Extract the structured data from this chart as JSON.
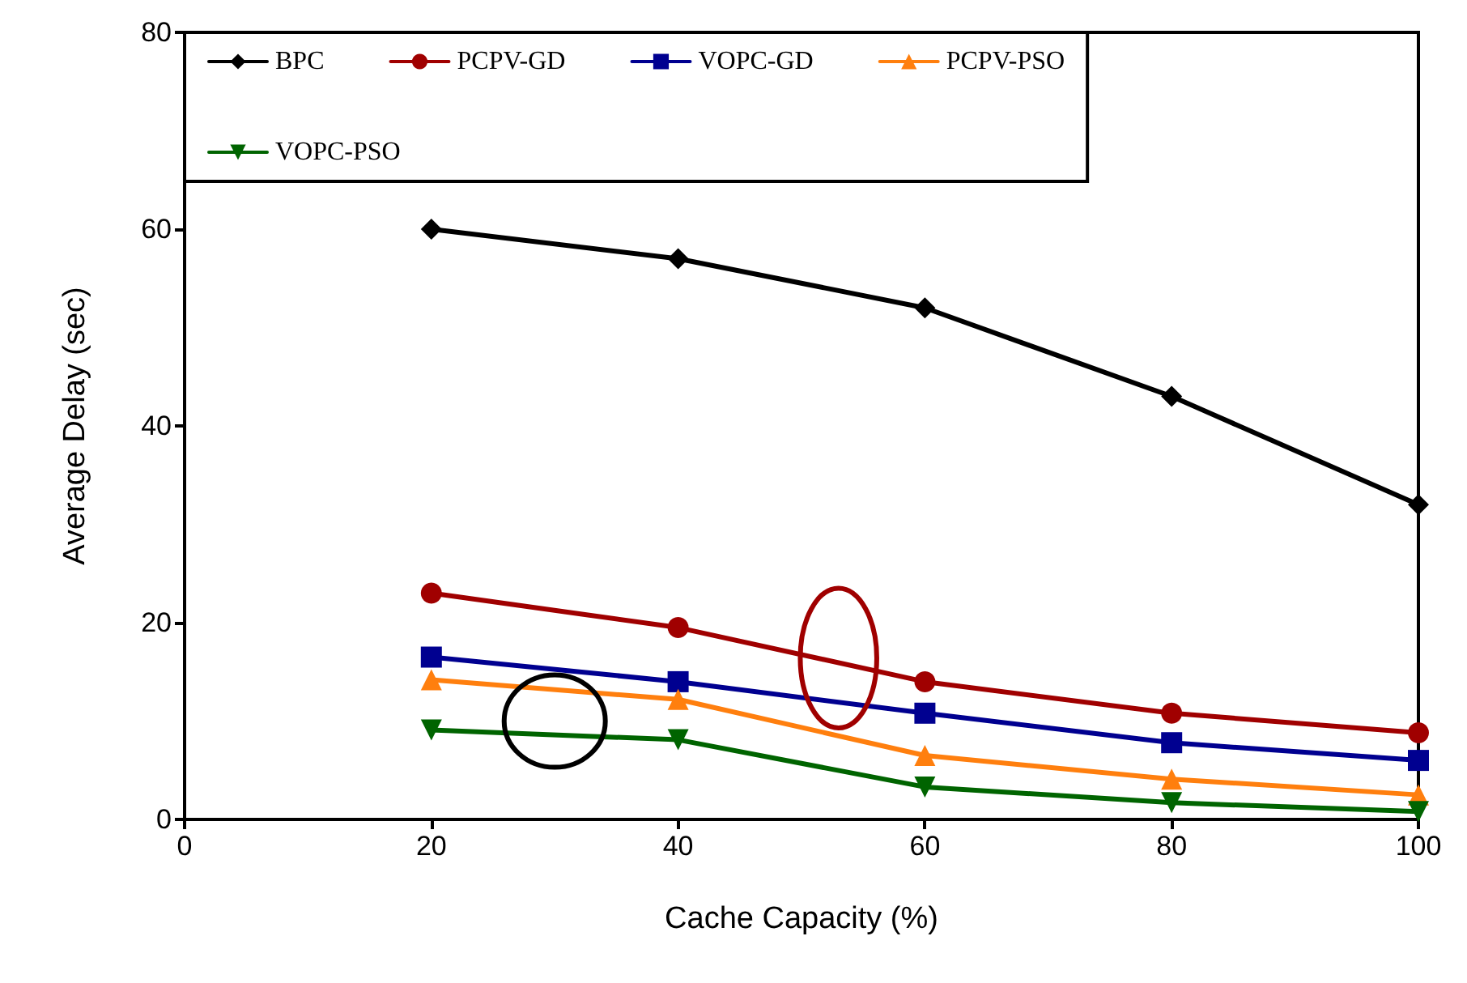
{
  "chart_data": {
    "type": "line",
    "xlabel": "Cache Capacity (%)",
    "ylabel": "Average Delay (sec)",
    "x": [
      20,
      40,
      60,
      80,
      100
    ],
    "series": [
      {
        "name": "BPC",
        "color": "#000000",
        "marker": "diamond",
        "values": [
          60,
          57,
          52,
          43,
          32
        ]
      },
      {
        "name": "PCPV-GD",
        "color": "#a00000",
        "marker": "circle",
        "values": [
          23,
          19.5,
          14,
          10.8,
          8.8
        ]
      },
      {
        "name": "VOPC-GD",
        "color": "#000090",
        "marker": "square",
        "values": [
          16.5,
          14,
          10.8,
          7.8,
          6
        ]
      },
      {
        "name": "PCPV-PSO",
        "color": "#ff7f0e",
        "marker": "triangle",
        "values": [
          14.2,
          12.2,
          6.5,
          4.1,
          2.5
        ]
      },
      {
        "name": "VOPC-PSO",
        "color": "#006400",
        "marker": "triangle-down",
        "values": [
          9.1,
          8.1,
          3.3,
          1.7,
          0.8
        ]
      }
    ],
    "xlim": [
      0,
      100
    ],
    "xticks": [
      0,
      20,
      40,
      60,
      80,
      100
    ],
    "ylim": [
      0,
      80
    ],
    "yticks": [
      0,
      20,
      40,
      60,
      80
    ],
    "grid": false,
    "legend": "top left",
    "line_style": "solid"
  }
}
